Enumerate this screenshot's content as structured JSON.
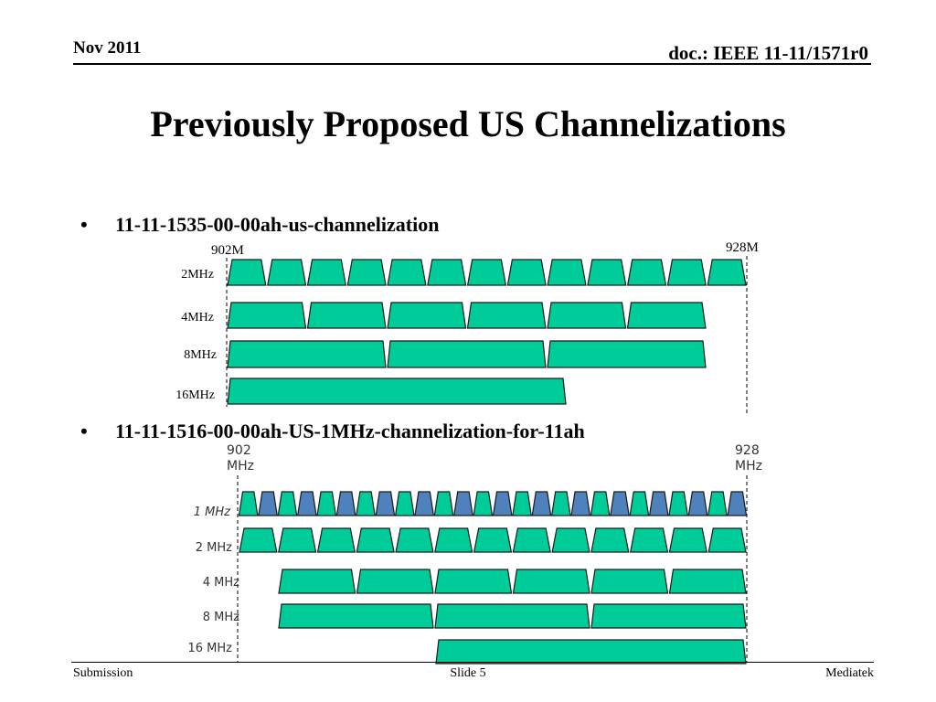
{
  "header": {
    "date": "Nov 2011",
    "doc_id": "doc.: IEEE 11-11/1571r0"
  },
  "title": "Previously Proposed US Channelizations",
  "bullets": [
    {
      "marker": "•",
      "text": "11-11-1535-00-00ah-us-channelization"
    },
    {
      "marker": "•",
      "text": "11-11-1516-00-00ah-US-1MHz-channelization-for-11ah"
    }
  ],
  "diagram1": {
    "start_label": "902M",
    "end_label": "928M",
    "rows": [
      {
        "label": "2MHz",
        "count": 13
      },
      {
        "label": "4MHz",
        "count": 6
      },
      {
        "label": "8MHz",
        "count": 3
      },
      {
        "label": "16MHz",
        "count": 1
      }
    ]
  },
  "diagram2": {
    "start_label": [
      "902",
      "MHz"
    ],
    "end_label": [
      "928",
      "MHz"
    ],
    "rows": [
      {
        "label": "1 MHz",
        "count": 26
      },
      {
        "label": "2 MHz",
        "count": 13
      },
      {
        "label": "4 MHz",
        "count": 6
      },
      {
        "label": "8 MHz",
        "count": 3
      },
      {
        "label": "16 MHz",
        "count": 1
      }
    ]
  },
  "colors": {
    "channel_green": "#00cc99",
    "channel_blue": "#4f81bd",
    "outline": "#1a1a1a"
  },
  "footer": {
    "left": "Submission",
    "center": "Slide 5",
    "right": "Mediatek"
  }
}
